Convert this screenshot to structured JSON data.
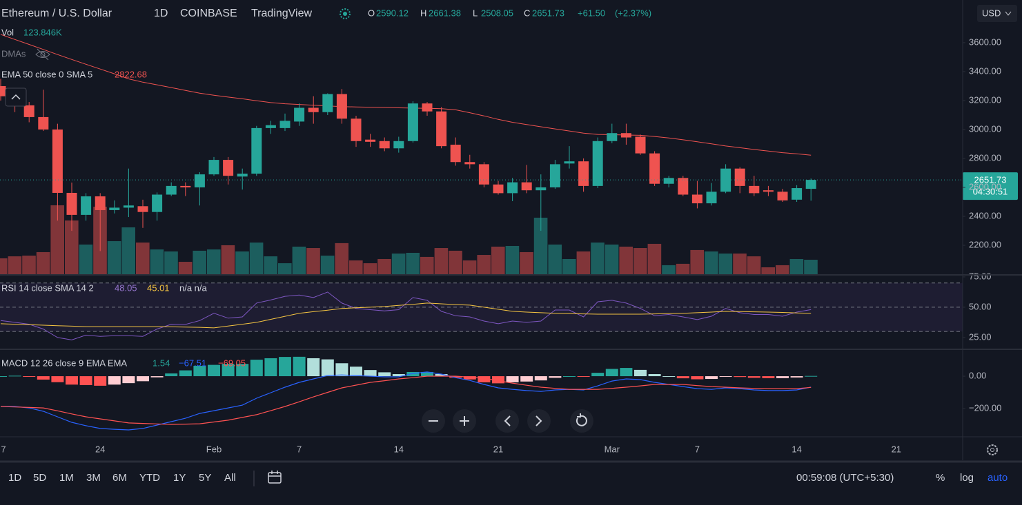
{
  "header": {
    "symbol": "Ethereum / U.S. Dollar",
    "interval": "1D",
    "exchange": "COINBASE",
    "source": "TradingView",
    "o": "O",
    "h": "H",
    "l": "L",
    "c": "C",
    "change": "+61.50",
    "change_pct": "(+2.37%)",
    "currency": "USD",
    "vol_label": "Vol",
    "vol_value": "123.846K",
    "dmas": "DMAs",
    "ema_label": "EMA 50 close 0 SMA 5",
    "countdown": "04:30:51"
  },
  "toolbar": {
    "ranges": [
      "1D",
      "5D",
      "1M",
      "3M",
      "6M",
      "YTD",
      "1Y",
      "5Y",
      "All"
    ],
    "clock": "00:59:08 (UTC+5:30)",
    "percent": "%",
    "log": "log",
    "auto": "auto"
  },
  "chart_data": [
    {
      "type": "candlestick",
      "up_color": "#26a69a",
      "down_color": "#ef5350",
      "ema_color": "#ef5350",
      "grid": false,
      "categories": [
        "7",
        null,
        null,
        null,
        null,
        null,
        null,
        "24",
        null,
        null,
        null,
        null,
        null,
        null,
        null,
        "Feb",
        null,
        null,
        null,
        null,
        null,
        "7",
        null,
        null,
        null,
        null,
        null,
        null,
        "14",
        null,
        null,
        null,
        null,
        null,
        null,
        "21",
        null,
        null,
        null,
        null,
        null,
        null,
        null,
        "Mar",
        null,
        null,
        null,
        null,
        null,
        "7",
        null,
        null,
        null,
        null,
        null,
        null,
        "14",
        null,
        null,
        null,
        null,
        null,
        null,
        "21"
      ],
      "open": [
        3300,
        3205,
        3167,
        3086,
        3000,
        2562,
        2410,
        2538,
        2443,
        2460,
        2470,
        2430,
        2550,
        2610,
        2600,
        2690,
        2790,
        2675,
        2695,
        3010,
        3010,
        3055,
        3150,
        3120,
        3245,
        3075,
        2930,
        2920,
        2870,
        2920,
        3180,
        3125,
        2895,
        2775,
        2760,
        2620,
        2560,
        2635,
        2580,
        2600,
        2765,
        2780,
        2610,
        2920,
        2975,
        2950,
        2835,
        2625,
        2665,
        2550,
        2490,
        2570,
        2730,
        2610,
        2580,
        2570,
        2515,
        2590.12,
        null,
        null,
        null,
        null,
        null,
        null
      ],
      "high": [
        3350,
        3240,
        3190,
        3275,
        3040,
        2633,
        2560,
        2560,
        2510,
        2730,
        2515,
        2565,
        2635,
        2635,
        2705,
        2810,
        2810,
        2730,
        3025,
        3060,
        3110,
        3180,
        3230,
        3250,
        3280,
        3095,
        2970,
        2945,
        2950,
        3195,
        3190,
        3155,
        2945,
        2825,
        2775,
        2645,
        2665,
        2755,
        2690,
        2790,
        2885,
        2800,
        2945,
        3040,
        3040,
        2965,
        2850,
        2680,
        2680,
        2645,
        2630,
        2760,
        2740,
        2680,
        2610,
        2590,
        2615,
        2661.38,
        null,
        null,
        null,
        null,
        null,
        null
      ],
      "low": [
        3200,
        3120,
        3050,
        2990,
        2370,
        2300,
        2370,
        2160,
        2420,
        2395,
        2320,
        2370,
        2540,
        2540,
        2475,
        2680,
        2620,
        2585,
        2680,
        2970,
        2990,
        3025,
        3040,
        3100,
        3040,
        2880,
        2880,
        2850,
        2840,
        2910,
        3095,
        2870,
        2750,
        2730,
        2600,
        2550,
        2505,
        2560,
        2300,
        2590,
        2730,
        2570,
        2595,
        2905,
        2895,
        2825,
        2610,
        2600,
        2540,
        2455,
        2475,
        2560,
        2560,
        2540,
        2540,
        2500,
        2500,
        2508.05,
        null,
        null,
        null,
        null,
        null,
        null
      ],
      "close": [
        3230,
        3165,
        3086,
        3000,
        2562,
        2410,
        2538,
        2443,
        2460,
        2475,
        2430,
        2550,
        2610,
        2600,
        2690,
        2790,
        2680,
        2695,
        3010,
        3030,
        3060,
        3150,
        3120,
        3245,
        3075,
        2920,
        2915,
        2870,
        2920,
        3180,
        3125,
        2885,
        2775,
        2760,
        2620,
        2560,
        2635,
        2580,
        2600,
        2760,
        2780,
        2610,
        2920,
        2975,
        2945,
        2835,
        2625,
        2665,
        2550,
        2490,
        2570,
        2730,
        2610,
        2560,
        2570,
        2510,
        2595,
        2651.73,
        null,
        null,
        null,
        null,
        null,
        null
      ],
      "volume": [
        136,
        153,
        159,
        189,
        590,
        460,
        254,
        578,
        283,
        401,
        271,
        212,
        195,
        106,
        201,
        212,
        248,
        195,
        271,
        153,
        94,
        236,
        224,
        159,
        266,
        118,
        94,
        130,
        177,
        183,
        148,
        224,
        201,
        118,
        165,
        236,
        242,
        189,
        484,
        254,
        130,
        195,
        271,
        254,
        236,
        224,
        260,
        77,
        89,
        207,
        195,
        177,
        177,
        153,
        59,
        77,
        130,
        123.846,
        null,
        null,
        null,
        null,
        null,
        null
      ],
      "ema": [
        3657,
        3622,
        3588,
        3553,
        3518,
        3484,
        3451,
        3418,
        3385,
        3350,
        3327,
        3309,
        3290,
        3270,
        3251,
        3237,
        3224,
        3212,
        3199,
        3186,
        3178,
        3173,
        3168,
        3163,
        3158,
        3156,
        3154,
        3152,
        3150,
        3148,
        3146,
        3144,
        3136,
        3116,
        3094,
        3070,
        3050,
        3034,
        3019,
        3004,
        2990,
        2975,
        2966,
        2964,
        2962,
        2960,
        2952,
        2942,
        2929,
        2915,
        2901,
        2886,
        2874,
        2862,
        2851,
        2840,
        2832,
        2822.68,
        null,
        null,
        null,
        null,
        null,
        null
      ],
      "ylim": [
        2000,
        3895
      ],
      "yticks": [
        {
          "value": 2200,
          "label": "2200.00"
        },
        {
          "value": 2400,
          "label": "2400.00"
        },
        {
          "value": 2600,
          "label": "2600.00"
        },
        {
          "value": 2800,
          "label": "2800.00"
        },
        {
          "value": 3000,
          "label": "3000.00"
        },
        {
          "value": 3200,
          "label": "3200.00"
        },
        {
          "value": 3400,
          "label": "3400.00"
        },
        {
          "value": 3600,
          "label": "3600.00"
        }
      ]
    },
    {
      "type": "line",
      "title": "RSI 14 close SMA 14 2",
      "na_text": "n/a n/a",
      "band": [
        30,
        70
      ],
      "band_color": "#7e57c2",
      "levels": [
        70,
        50,
        30
      ],
      "series": [
        {
          "color": "#7e57c2",
          "values": [
            39,
            37.5,
            36,
            32,
            25,
            23,
            27,
            26,
            26.5,
            26.5,
            26,
            32,
            36,
            35.8,
            39,
            45,
            41,
            42,
            53.4,
            56,
            59,
            60,
            58,
            62.5,
            53.4,
            49,
            48,
            47,
            48,
            58,
            55.7,
            46.6,
            43,
            42,
            38.6,
            36.4,
            38.6,
            37.5,
            38.6,
            47.7,
            47.7,
            42,
            54.5,
            55.7,
            53.4,
            49,
            43,
            44,
            42,
            39.8,
            42.6,
            49,
            45.5,
            44,
            44,
            42.6,
            46,
            48.05,
            null,
            null,
            null,
            null,
            null,
            null
          ]
        },
        {
          "color": "#f5c542",
          "values": [
            36.4,
            36,
            35.6,
            35.2,
            34.8,
            34.4,
            34,
            34,
            34,
            34,
            34,
            34,
            33.8,
            33.6,
            33.4,
            33,
            34.5,
            36,
            37.5,
            40,
            42.5,
            45,
            46.3,
            47.6,
            49,
            49.5,
            50,
            50.6,
            51.5,
            52.4,
            53.4,
            52.8,
            52.2,
            51.7,
            50,
            48.3,
            46.6,
            46,
            45.5,
            45,
            44.8,
            44.5,
            44.3,
            44.3,
            44.3,
            44.3,
            44.5,
            44.8,
            45,
            45.5,
            46,
            46.6,
            46.4,
            46.2,
            46,
            45.7,
            45.3,
            45.01,
            null,
            null,
            null,
            null,
            null,
            null
          ]
        }
      ],
      "ylim": [
        15.3,
        76.1
      ],
      "yticks": [
        {
          "value": 75,
          "label": "75.00"
        },
        {
          "value": 50,
          "label": "50.00"
        },
        {
          "value": 25,
          "label": "25.00"
        }
      ]
    },
    {
      "type": "macd",
      "title": "MACD 12 26 close 9 EMA EMA",
      "macd_text": "−67.51",
      "signal_text": "−69.05",
      "series": [
        {
          "color": "#2962ff",
          "values": [
            -187,
            -187,
            -196,
            -217,
            -251,
            -285,
            -306,
            -323,
            -328,
            -332,
            -323,
            -302,
            -281,
            -260,
            -230,
            -213,
            -196,
            -179,
            -136,
            -102,
            -68,
            -38,
            -17,
            4,
            8,
            4,
            0,
            -4,
            -4,
            17,
            26,
            13,
            -9,
            -26,
            -51,
            -72,
            -81,
            -89,
            -94,
            -85,
            -81,
            -85,
            -60,
            -30,
            -17,
            -21,
            -38,
            -51,
            -64,
            -77,
            -81,
            -72,
            -77,
            -85,
            -89,
            -89,
            -85,
            -67.51,
            null,
            null,
            null,
            null,
            null,
            null
          ]
        },
        {
          "color": "#ff5252",
          "values": [
            -187,
            -190,
            -193,
            -196,
            -214,
            -233,
            -251,
            -264,
            -276,
            -289,
            -292,
            -295,
            -298,
            -296,
            -294,
            -283,
            -272,
            -255,
            -238,
            -213,
            -187,
            -158,
            -128,
            -100,
            -72,
            -55,
            -38,
            -28,
            -17,
            -9,
            0,
            0,
            0,
            -6,
            -13,
            -28,
            -43,
            -56,
            -68,
            -75,
            -81,
            -81,
            -81,
            -75,
            -68,
            -60,
            -51,
            -51,
            -51,
            -58,
            -64,
            -68,
            -72,
            -75,
            -77,
            -77,
            -77,
            -69.05,
            null,
            null,
            null,
            null,
            null,
            null
          ]
        }
      ],
      "histogram": {
        "colors": [
          "#26a69a",
          "#b2dfdb",
          "#ffcdd2",
          "#ff5252"
        ],
        "values": [
          0,
          3,
          -3,
          -21,
          -37,
          -52,
          -55,
          -59,
          -52,
          -43,
          -31,
          -7,
          17,
          36,
          64,
          70,
          76,
          76,
          102,
          111,
          119,
          120,
          111,
          104,
          80,
          59,
          38,
          24,
          13,
          26,
          26,
          13,
          -9,
          -20,
          -38,
          -44,
          -38,
          -33,
          -26,
          -10,
          0,
          -4,
          21,
          45,
          51,
          39,
          13,
          0,
          -13,
          -19,
          -17,
          -4,
          -5,
          -10,
          -12,
          -12,
          -8,
          1.54,
          null,
          null,
          null,
          null,
          null,
          null
        ]
      },
      "ylim": [
        -366,
        162
      ],
      "yticks": [
        {
          "value": 0,
          "label": "0.00"
        },
        {
          "value": -200,
          "label": "−200.00"
        }
      ]
    }
  ]
}
